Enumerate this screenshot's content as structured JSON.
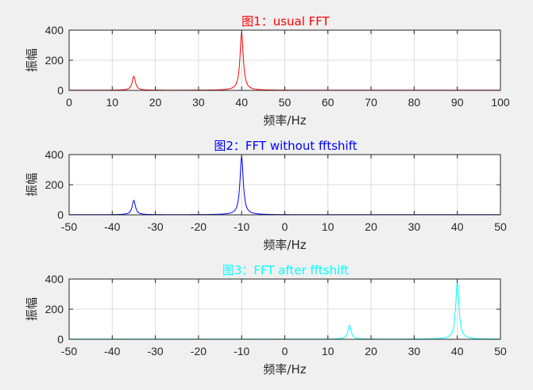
{
  "chart_data": [
    {
      "type": "line",
      "title": "图1：usual FFT",
      "xlabel": "频率/Hz",
      "ylabel": "振幅",
      "xlim": [
        0,
        100
      ],
      "ylim": [
        0,
        400
      ],
      "xticks": [
        "0",
        "10",
        "20",
        "30",
        "40",
        "50",
        "60",
        "70",
        "80",
        "90",
        "100"
      ],
      "yticks": [
        "0",
        "200",
        "400"
      ],
      "grid": true,
      "color": "#ff0000",
      "peaks": [
        {
          "x": 15,
          "y": 92
        },
        {
          "x": 40,
          "y": 385
        }
      ],
      "baseline": 1
    },
    {
      "type": "line",
      "title": "图2：FFT without fftshift",
      "xlabel": "频率/Hz",
      "ylabel": "振幅",
      "xlim": [
        -50,
        50
      ],
      "ylim": [
        0,
        400
      ],
      "xticks": [
        "-50",
        "-40",
        "-30",
        "-20",
        "-10",
        "0",
        "10",
        "20",
        "30",
        "40",
        "50"
      ],
      "yticks": [
        "0",
        "200",
        "400"
      ],
      "grid": true,
      "color": "#0000ff",
      "peaks": [
        {
          "x": -35,
          "y": 95
        },
        {
          "x": -10,
          "y": 390
        }
      ],
      "baseline": 1
    },
    {
      "type": "line",
      "title": "图3：FFT after fftshift",
      "xlabel": "频率/Hz",
      "ylabel": "振幅",
      "xlim": [
        -50,
        50
      ],
      "ylim": [
        0,
        400
      ],
      "xticks": [
        "-50",
        "-40",
        "-30",
        "-20",
        "-10",
        "0",
        "10",
        "20",
        "30",
        "40",
        "50"
      ],
      "yticks": [
        "0",
        "200",
        "400"
      ],
      "grid": true,
      "color": "#00ffff",
      "peaks": [
        {
          "x": 15,
          "y": 92
        },
        {
          "x": 40,
          "y": 385
        }
      ],
      "baseline": 1
    }
  ]
}
